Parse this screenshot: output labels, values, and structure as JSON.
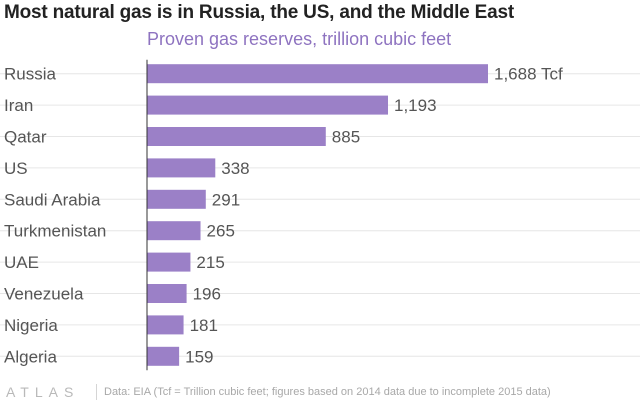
{
  "title": "Most natural gas is in Russia, the US, and the Middle East",
  "subtitle": "Proven gas reserves, trillion cubic feet",
  "chart_data": {
    "type": "bar",
    "orientation": "horizontal",
    "categories": [
      "Russia",
      "Iran",
      "Qatar",
      "US",
      "Saudi Arabia",
      "Turkmenistan",
      "UAE",
      "Venezuela",
      "Nigeria",
      "Algeria"
    ],
    "values": [
      1688,
      1193,
      885,
      338,
      291,
      265,
      215,
      196,
      181,
      159
    ],
    "value_labels": [
      "1,688 Tcf",
      "1,193",
      "885",
      "338",
      "291",
      "265",
      "215",
      "196",
      "181",
      "159"
    ],
    "bar_color": "#9b80c7",
    "xlim": [
      0,
      1688
    ],
    "grid": true
  },
  "footer": {
    "logo": "ATLAS",
    "source": "Data: EIA (Tcf = Trillion cubic feet; figures based on 2014 data due to incomplete 2015 data)"
  },
  "colors": {
    "title": "#222222",
    "subtitle": "#8e73c0",
    "category_label": "#555555",
    "value_label": "#555555",
    "gridline": "#e6e6e6",
    "axis": "#333333",
    "footer": "#a8a8a8"
  }
}
